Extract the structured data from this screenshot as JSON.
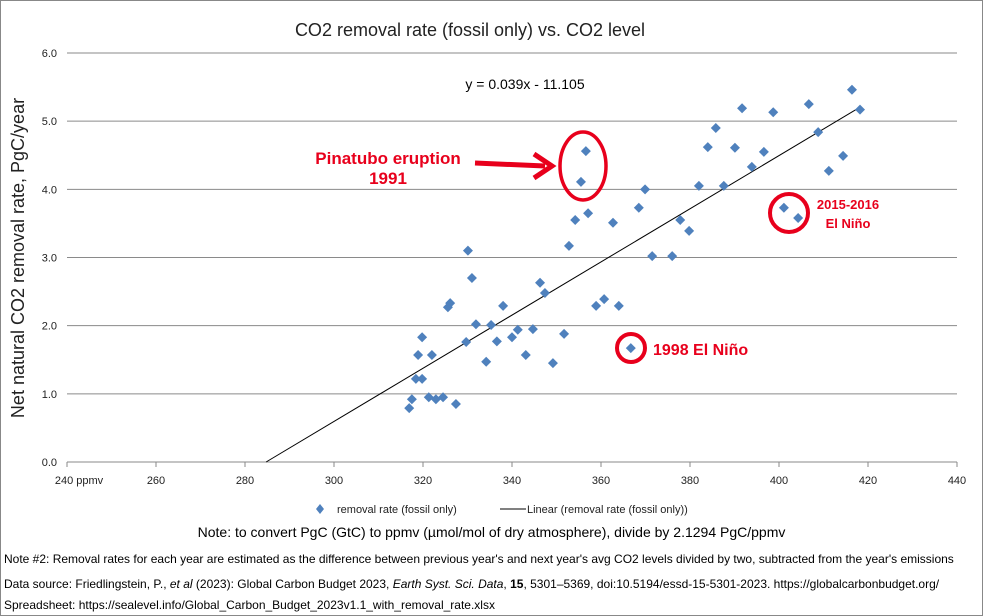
{
  "chart_data": {
    "type": "scatter",
    "title": "CO2 removal rate (fossil only) vs. CO2 level",
    "xlabel": "",
    "ylabel": "Net natural CO2 removal rate, PgC/year",
    "xlim": [
      240,
      440
    ],
    "ylim": [
      0,
      6
    ],
    "x_ticks": [
      "240 ppmv",
      "260",
      "280",
      "300",
      "320",
      "340",
      "360",
      "380",
      "400",
      "420",
      "440"
    ],
    "y_ticks": [
      "0.0",
      "1.0",
      "2.0",
      "3.0",
      "4.0",
      "5.0",
      "6.0"
    ],
    "grid": "horizontal",
    "legend_position": "bottom",
    "series": [
      {
        "name": "removal rate (fossil only)",
        "color": "#4f81bd",
        "marker": "diamond",
        "x": [
          316.9,
          317.5,
          318.4,
          318.9,
          319.8,
          319.8,
          321.3,
          322.0,
          322.9,
          324.5,
          327.4,
          325.6,
          326.1,
          330.1,
          331.0,
          329.7,
          331.9,
          334.2,
          335.3,
          336.6,
          338.0,
          340.0,
          341.3,
          343.1,
          344.7,
          346.3,
          347.4,
          349.2,
          351.7,
          352.8,
          354.2,
          355.5,
          356.6,
          357.1,
          358.9,
          360.7,
          362.7,
          364.0,
          366.7,
          368.5,
          369.9,
          371.5,
          376.0,
          377.8,
          379.8,
          382.0,
          384.0,
          385.8,
          387.6,
          390.1,
          391.7,
          393.9,
          396.6,
          398.7,
          401.1,
          404.3,
          406.7,
          408.8,
          411.2,
          414.4,
          416.4,
          418.2
        ],
        "y": [
          0.79,
          0.92,
          1.22,
          1.57,
          1.83,
          1.22,
          0.95,
          1.57,
          0.92,
          0.95,
          0.85,
          2.27,
          2.33,
          3.1,
          2.7,
          1.76,
          2.02,
          1.47,
          2.01,
          1.77,
          2.29,
          1.83,
          1.94,
          1.57,
          1.95,
          2.63,
          2.48,
          1.45,
          1.88,
          3.17,
          3.55,
          4.11,
          4.56,
          3.65,
          2.29,
          2.39,
          3.51,
          2.29,
          1.67,
          3.73,
          4.0,
          3.02,
          3.02,
          3.55,
          3.39,
          4.05,
          4.62,
          4.9,
          4.05,
          4.61,
          5.19,
          4.33,
          4.55,
          5.13,
          3.73,
          3.58,
          5.25,
          4.84,
          4.27,
          4.49,
          5.46,
          5.17
        ]
      },
      {
        "name": "Linear (removal rate (fossil only))",
        "color": "#000000",
        "type": "trendline",
        "slope": 0.039,
        "intercept": -11.105
      }
    ],
    "equation": "y = 0.039x - 11.105",
    "annotations": {
      "pinatubo_line1": "Pinatubo eruption",
      "pinatubo_line2": "1991",
      "nino1998": "1998 El Niño",
      "nino2015_line1": "2015-2016",
      "nino2015_line2": "El Niño",
      "color": "#e8001c"
    }
  },
  "notes": {
    "convert": "Note:  to convert PgC (GtC) to ppmv (µmol/mol of dry atmosphere), divide by 2.1294 PgC/ppmv",
    "note2": "Note #2:  Removal rates for each year are estimated as the difference between previous year's and next year's avg CO2 levels divided by two, subtracted from the year's emissions",
    "source_a": "Data source:  Friedlingstein, P., ",
    "source_b": "et al",
    "source_c": " (2023): Global Carbon Budget 2023, ",
    "source_d": "Earth Syst. Sci. Data",
    "source_e": ", ",
    "source_f": "15",
    "source_g": ", 5301–5369, doi:10.5194/essd-15-5301-2023.  https://globalcarbonbudget.org/",
    "spreadsheet": "Spreadsheet:  https://sealevel.info/Global_Carbon_Budget_2023v1.1_with_removal_rate.xlsx"
  }
}
